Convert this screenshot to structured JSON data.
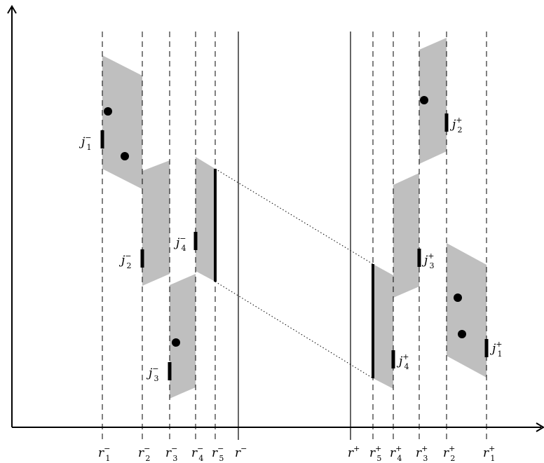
{
  "diagram": {
    "colors": {
      "region_fill": "#bfbfbf",
      "ink": "#000000",
      "background": "#ffffff"
    },
    "bottom_labels": [
      {
        "id": "rm1",
        "base": "r",
        "sub": "1",
        "sup": "−"
      },
      {
        "id": "rm2",
        "base": "r",
        "sub": "2",
        "sup": "−"
      },
      {
        "id": "rm3",
        "base": "r",
        "sub": "3",
        "sup": "−"
      },
      {
        "id": "rm4",
        "base": "r",
        "sub": "4",
        "sup": "−"
      },
      {
        "id": "rm5",
        "base": "r",
        "sub": "5",
        "sup": "−"
      },
      {
        "id": "rm",
        "base": "r",
        "sub": "",
        "sup": "−"
      },
      {
        "id": "rp",
        "base": "r",
        "sub": "",
        "sup": "+"
      },
      {
        "id": "rp5",
        "base": "r",
        "sub": "5",
        "sup": "+"
      },
      {
        "id": "rp4",
        "base": "r",
        "sub": "4",
        "sup": "+"
      },
      {
        "id": "rp3",
        "base": "r",
        "sub": "3",
        "sup": "+"
      },
      {
        "id": "rp2",
        "base": "r",
        "sub": "2",
        "sup": "+"
      },
      {
        "id": "rp1",
        "base": "r",
        "sub": "1",
        "sup": "+"
      }
    ],
    "j_labels": [
      {
        "id": "jm1",
        "base": "j",
        "sub": "1",
        "sup": "−"
      },
      {
        "id": "jm2",
        "base": "j",
        "sub": "2",
        "sup": "−"
      },
      {
        "id": "jm3",
        "base": "j",
        "sub": "3",
        "sup": "−"
      },
      {
        "id": "jm4",
        "base": "j",
        "sub": "4",
        "sup": "−"
      },
      {
        "id": "jp2",
        "base": "j",
        "sub": "2",
        "sup": "+"
      },
      {
        "id": "jp3",
        "base": "j",
        "sub": "3",
        "sup": "+"
      },
      {
        "id": "jp4",
        "base": "j",
        "sub": "4",
        "sup": "+"
      },
      {
        "id": "jp1",
        "base": "j",
        "sub": "1",
        "sup": "+"
      }
    ]
  }
}
